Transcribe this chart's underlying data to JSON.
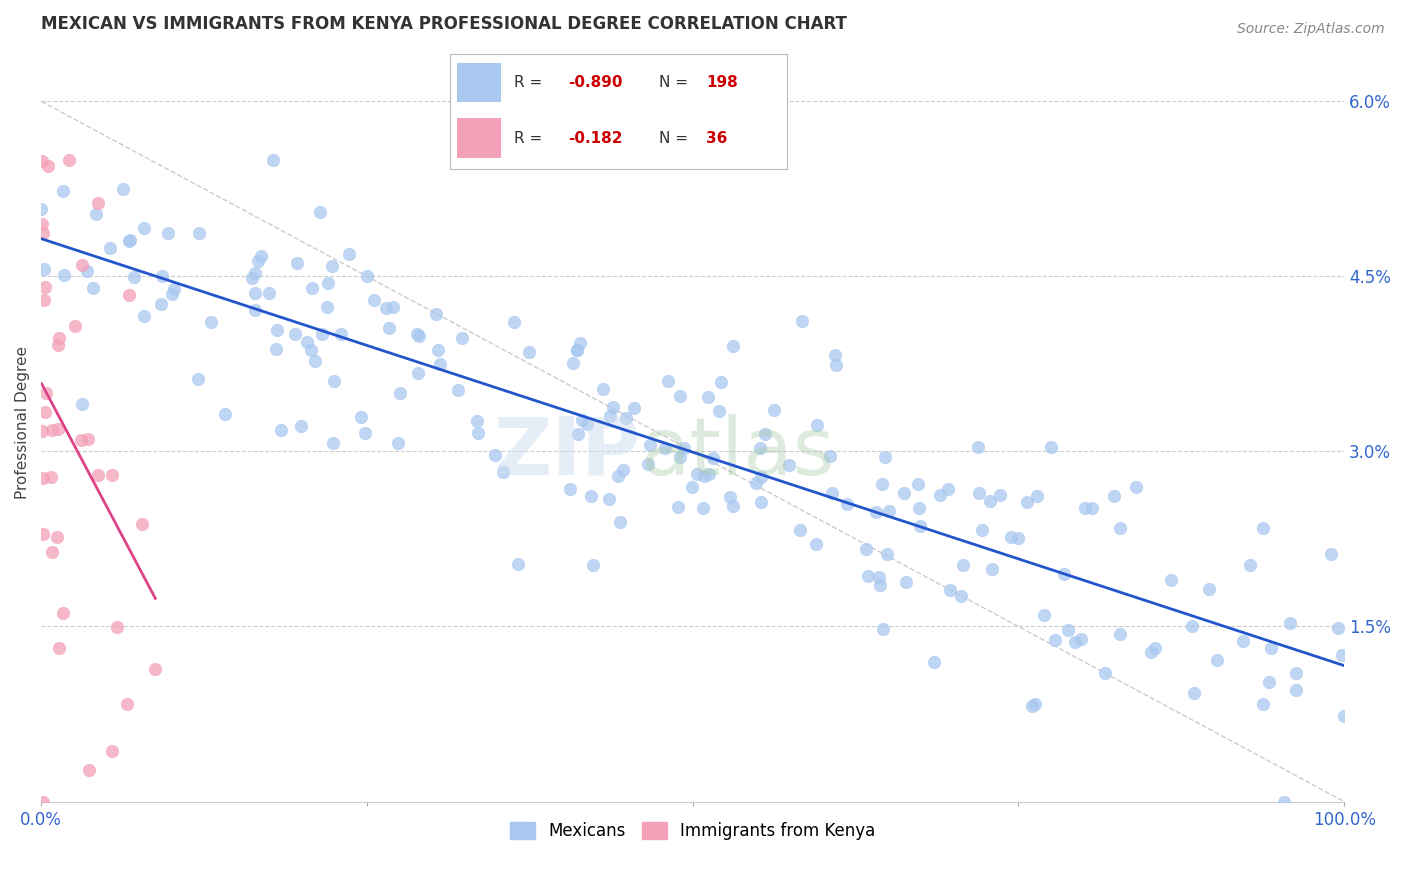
{
  "title": "MEXICAN VS IMMIGRANTS FROM KENYA PROFESSIONAL DEGREE CORRELATION CHART",
  "source": "Source: ZipAtlas.com",
  "ylabel": "Professional Degree",
  "right_yticklabels": [
    "",
    "1.5%",
    "3.0%",
    "4.5%",
    "6.0%"
  ],
  "right_ytick_vals": [
    0.0,
    0.015,
    0.03,
    0.045,
    0.06
  ],
  "legend_blue_r": "-0.890",
  "legend_blue_n": "198",
  "legend_pink_r": "-0.182",
  "legend_pink_n": "36",
  "blue_color": "#A8C8F0",
  "pink_color": "#F4A0B8",
  "blue_line_color": "#2255CC",
  "pink_line_color": "#DD4488",
  "watermark_zip": "ZIP",
  "watermark_atlas": "atlas",
  "background_color": "#FFFFFF",
  "axis_color": "#3366CC",
  "grid_color": "#CCCCCC",
  "xlim": [
    0.0,
    1.0
  ],
  "ylim": [
    0.0,
    0.065
  ],
  "seed": 12,
  "n_blue": 198,
  "n_pink": 36,
  "blue_R": -0.89,
  "pink_R": -0.182,
  "title_fontsize": 12,
  "source_fontsize": 10,
  "tick_fontsize": 12,
  "marker_size": 80
}
